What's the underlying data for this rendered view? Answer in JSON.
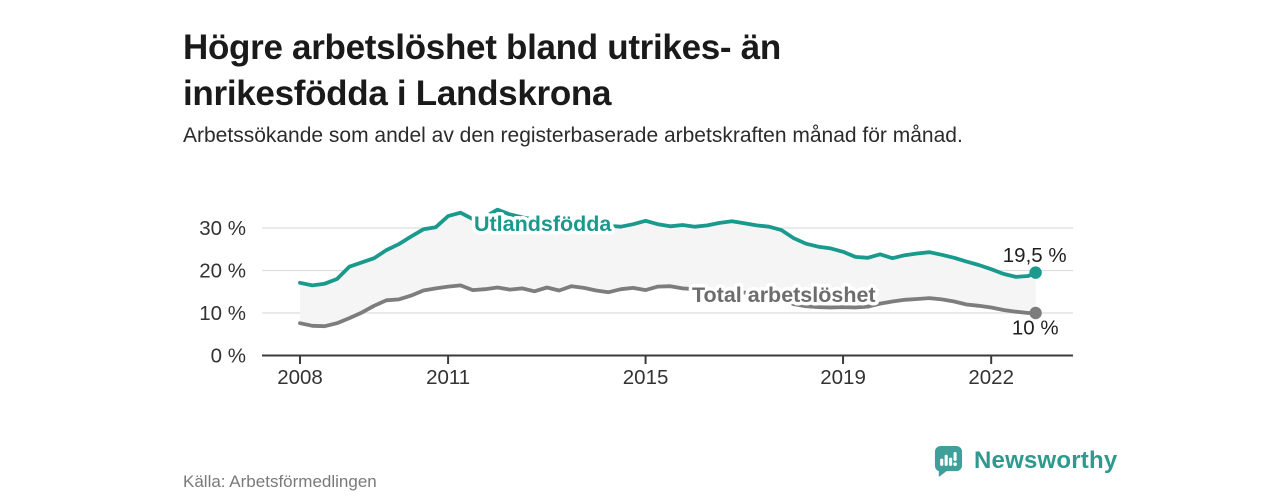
{
  "header": {
    "title": "Högre arbetslöshet bland utrikes- än inrikesfödda i Landskrona",
    "subtitle": "Arbetssökande som andel av den registerbaserade arbetskraften månad för månad."
  },
  "footer": {
    "source": "Källa: Arbetsförmedlingen",
    "brand": "Newsworthy"
  },
  "colors": {
    "accent_teal": "#1a9a8c",
    "line_gray": "#7d7d7d",
    "label_gray": "#6d6d6d",
    "band_fill": "#f5f5f5",
    "gridline": "#dedede",
    "axis": "#3b3b3b",
    "brand_teal": "#3fa099"
  },
  "chart_data": {
    "type": "line",
    "title": "Högre arbetslöshet bland utrikes- än inrikesfödda i Landskrona",
    "subtitle": "Arbetssökande som andel av den registerbaserade arbetskraften månad för månad.",
    "xlabel": "",
    "ylabel": "",
    "xlim": [
      2007.25,
      2023.65
    ],
    "ylim": [
      0,
      36
    ],
    "grid": "horizontal",
    "legend_position": "inline-labels",
    "xticks": [
      {
        "label": "2008",
        "value": 2008
      },
      {
        "label": "2011",
        "value": 2011
      },
      {
        "label": "2015",
        "value": 2015
      },
      {
        "label": "2019",
        "value": 2019
      },
      {
        "label": "2022",
        "value": 2022
      }
    ],
    "yticks": [
      {
        "label": "0 %",
        "value": 0
      },
      {
        "label": "10 %",
        "value": 10
      },
      {
        "label": "20 %",
        "value": 20
      },
      {
        "label": "30 %",
        "value": 30
      }
    ],
    "x": [
      2008.0,
      2008.25,
      2008.5,
      2008.75,
      2009.0,
      2009.25,
      2009.5,
      2009.75,
      2010.0,
      2010.25,
      2010.5,
      2010.75,
      2011.0,
      2011.25,
      2011.5,
      2011.75,
      2012.0,
      2012.25,
      2012.5,
      2012.75,
      2013.0,
      2013.25,
      2013.5,
      2013.75,
      2014.0,
      2014.25,
      2014.5,
      2014.75,
      2015.0,
      2015.25,
      2015.5,
      2015.75,
      2016.0,
      2016.25,
      2016.5,
      2016.75,
      2017.0,
      2017.25,
      2017.5,
      2017.75,
      2018.0,
      2018.25,
      2018.5,
      2018.75,
      2019.0,
      2019.25,
      2019.5,
      2019.75,
      2020.0,
      2020.25,
      2020.5,
      2020.75,
      2021.0,
      2021.25,
      2021.5,
      2021.75,
      2022.0,
      2022.25,
      2022.5,
      2022.75,
      2022.9
    ],
    "series": [
      {
        "name": "Utlandsfödda",
        "color": "#1a9a8c",
        "end_value": 19.5,
        "end_label": "19,5 %",
        "values": [
          17.1,
          16.5,
          16.9,
          18.0,
          20.9,
          21.9,
          22.9,
          24.8,
          26.2,
          28.0,
          29.7,
          30.2,
          32.8,
          33.6,
          32.1,
          32.6,
          34.3,
          33.2,
          32.5,
          32.0,
          31.7,
          31.4,
          31.2,
          31.0,
          30.8,
          30.5,
          30.3,
          30.9,
          31.7,
          30.9,
          30.4,
          30.7,
          30.3,
          30.6,
          31.2,
          31.6,
          31.1,
          30.6,
          30.3,
          29.5,
          27.6,
          26.3,
          25.6,
          25.2,
          24.4,
          23.2,
          23.0,
          23.8,
          22.9,
          23.6,
          24.0,
          24.3,
          23.7,
          23.0,
          22.1,
          21.3,
          20.3,
          19.2,
          18.5,
          18.7,
          19.5
        ]
      },
      {
        "name": "Total arbetslöshet",
        "color": "#7d7d7d",
        "end_value": 10,
        "end_label": "10 %",
        "values": [
          7.6,
          7.0,
          6.9,
          7.6,
          8.8,
          10.1,
          11.7,
          13.0,
          13.2,
          14.1,
          15.3,
          15.8,
          16.2,
          16.5,
          15.4,
          15.6,
          16.0,
          15.5,
          15.8,
          15.1,
          16.0,
          15.3,
          16.3,
          15.9,
          15.3,
          14.9,
          15.6,
          15.9,
          15.4,
          16.2,
          16.3,
          15.8,
          15.6,
          15.3,
          15.0,
          14.9,
          14.8,
          14.7,
          14.3,
          13.2,
          12.1,
          11.6,
          11.4,
          11.3,
          11.4,
          11.3,
          11.5,
          12.2,
          12.7,
          13.1,
          13.3,
          13.5,
          13.2,
          12.7,
          12.0,
          11.7,
          11.3,
          10.7,
          10.3,
          10.0,
          10.0
        ]
      }
    ],
    "annotations": [
      {
        "text": "19,5 %",
        "series": "Utlandsfödda",
        "x": 2022.9,
        "y": 19.5
      },
      {
        "text": "10 %",
        "series": "Total arbetslöshet",
        "x": 2022.9,
        "y": 10
      }
    ]
  }
}
